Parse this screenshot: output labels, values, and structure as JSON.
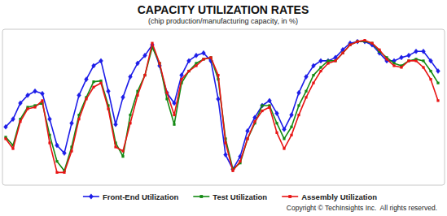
{
  "chart_data": {
    "type": "line",
    "title": "CAPACITY UTILIZATION RATES",
    "subtitle": "(chip production/manufacturing capacity, in %)",
    "annotations": [
      "Copyright © TechInsights Inc.  All rights reserved."
    ],
    "categories": [
      null,
      null,
      null,
      null,
      null,
      null,
      null,
      null,
      null,
      null,
      null,
      null,
      null,
      null,
      null,
      null,
      null,
      null,
      null,
      null,
      null,
      null,
      null,
      null,
      null,
      null,
      null,
      null,
      null,
      null,
      null,
      null,
      null,
      null,
      null,
      null,
      null,
      null,
      null,
      null,
      null,
      null,
      null,
      null,
      null,
      null,
      null,
      null,
      null,
      null,
      null,
      null,
      null,
      null,
      null,
      null,
      null,
      null,
      null,
      null
    ],
    "series": [
      {
        "name": "Front-End Utilization",
        "color": "#1c1ce8",
        "marker": "diamond",
        "line_style": "solid",
        "values": [
          74.2,
          76.1,
          80.0,
          81.9,
          82.9,
          82.3,
          76.1,
          69.7,
          67.8,
          75.1,
          81.9,
          85.8,
          89.1,
          90.3,
          82.9,
          74.8,
          81.4,
          86.4,
          89.7,
          91.6,
          94.2,
          89.1,
          82.5,
          80.0,
          86.8,
          90.3,
          91.6,
          92.2,
          90.3,
          81.0,
          67.4,
          63.9,
          67.0,
          73.2,
          76.5,
          79.4,
          80.6,
          77.5,
          73.6,
          77.1,
          82.5,
          86.4,
          89.1,
          90.3,
          90.3,
          91.1,
          93.0,
          94.6,
          95.0,
          95.0,
          94.2,
          92.2,
          90.3,
          90.3,
          91.1,
          91.6,
          92.6,
          92.6,
          90.3,
          87.8
        ]
      },
      {
        "name": "Test Utilization",
        "color": "#138a13",
        "marker": "square",
        "line_style": "solid",
        "values": [
          71.7,
          69.7,
          76.1,
          79.0,
          79.4,
          80.0,
          72.2,
          65.8,
          63.5,
          69.3,
          77.1,
          81.4,
          85.2,
          85.4,
          79.4,
          70.3,
          67.0,
          77.1,
          82.9,
          86.8,
          93.6,
          89.7,
          81.0,
          74.8,
          84.9,
          87.8,
          89.7,
          90.7,
          91.1,
          85.8,
          71.3,
          63.9,
          65.4,
          71.3,
          75.1,
          79.4,
          79.4,
          75.1,
          71.3,
          74.2,
          79.4,
          82.9,
          86.8,
          88.7,
          90.3,
          90.3,
          92.2,
          94.2,
          95.0,
          95.1,
          94.6,
          92.6,
          91.1,
          89.7,
          89.1,
          90.3,
          90.7,
          90.3,
          87.8,
          84.9
        ]
      },
      {
        "name": "Assembly Utilization",
        "color": "#e81414",
        "marker": "square",
        "line_style": "solid",
        "values": [
          71.3,
          68.9,
          75.5,
          78.6,
          79.0,
          80.6,
          70.3,
          63.1,
          63.1,
          68.3,
          76.1,
          81.0,
          83.9,
          84.9,
          78.6,
          69.3,
          68.3,
          75.1,
          81.9,
          86.8,
          94.6,
          89.7,
          82.5,
          77.1,
          85.8,
          87.8,
          89.1,
          90.7,
          91.1,
          86.8,
          70.3,
          63.5,
          65.8,
          71.3,
          75.5,
          78.1,
          79.0,
          72.8,
          68.9,
          72.2,
          77.1,
          81.4,
          84.9,
          87.8,
          89.7,
          90.3,
          92.2,
          94.2,
          95.0,
          95.3,
          94.6,
          93.0,
          90.7,
          89.1,
          88.7,
          90.3,
          90.3,
          88.7,
          85.8,
          80.6
        ]
      }
    ],
    "ylim": [
      60,
      98
    ],
    "grid": false,
    "tick_labels": false,
    "legend": "bottom"
  }
}
